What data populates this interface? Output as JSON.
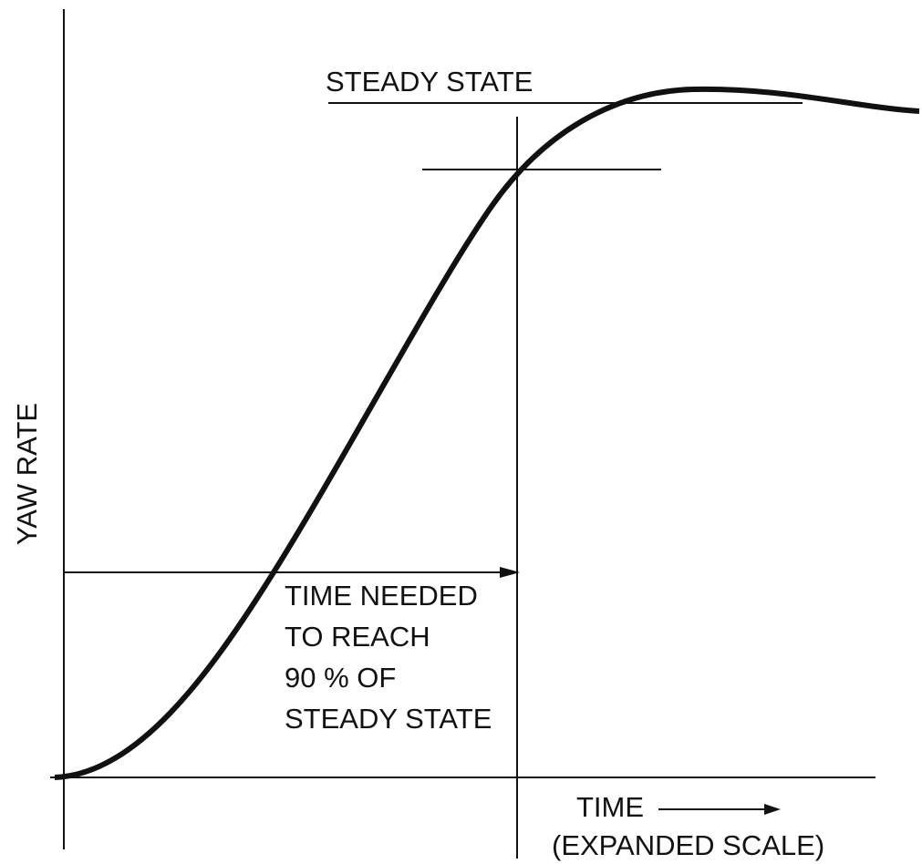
{
  "diagram": {
    "steady_state_label": "STEADY STATE",
    "y_axis_label": "YAW RATE",
    "annotation_lines": [
      "TIME NEEDED",
      "TO REACH",
      "90 % OF",
      "STEADY STATE"
    ],
    "x_axis_label": "TIME",
    "x_axis_sublabel": "(EXPANDED SCALE)"
  }
}
